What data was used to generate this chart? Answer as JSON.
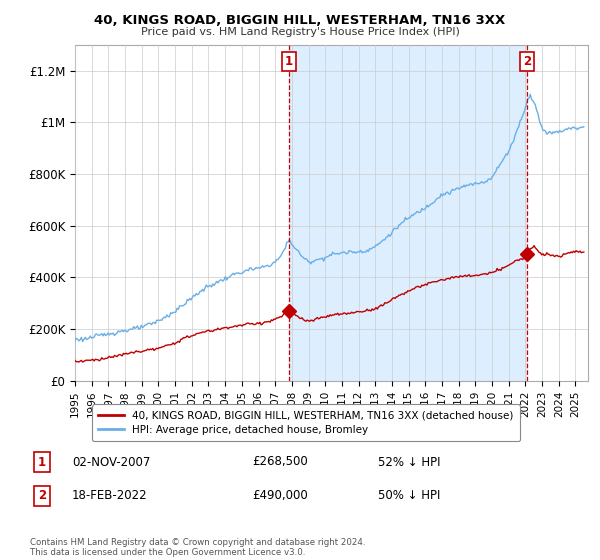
{
  "title": "40, KINGS ROAD, BIGGIN HILL, WESTERHAM, TN16 3XX",
  "subtitle": "Price paid vs. HM Land Registry's House Price Index (HPI)",
  "ylabel_ticks": [
    "£0",
    "£200K",
    "£400K",
    "£600K",
    "£800K",
    "£1M",
    "£1.2M"
  ],
  "ytick_values": [
    0,
    200000,
    400000,
    600000,
    800000,
    1000000,
    1200000
  ],
  "ylim": [
    0,
    1300000
  ],
  "xlim_start": 1995.0,
  "xlim_end": 2025.75,
  "hpi_color": "#6aafe6",
  "hpi_fill_color": "#ddeeff",
  "price_color": "#c00000",
  "dashed_line_color": "#cc0000",
  "marker1_date_x": 2007.84,
  "marker1_price": 268500,
  "marker2_date_x": 2022.12,
  "marker2_price": 490000,
  "legend_label_red": "40, KINGS ROAD, BIGGIN HILL, WESTERHAM, TN16 3XX (detached house)",
  "legend_label_blue": "HPI: Average price, detached house, Bromley",
  "table_row1": [
    "1",
    "02-NOV-2007",
    "£268,500",
    "52% ↓ HPI"
  ],
  "table_row2": [
    "2",
    "18-FEB-2022",
    "£490,000",
    "50% ↓ HPI"
  ],
  "footer": "Contains HM Land Registry data © Crown copyright and database right 2024.\nThis data is licensed under the Open Government Licence v3.0.",
  "background_color": "#ffffff",
  "grid_color": "#cccccc"
}
